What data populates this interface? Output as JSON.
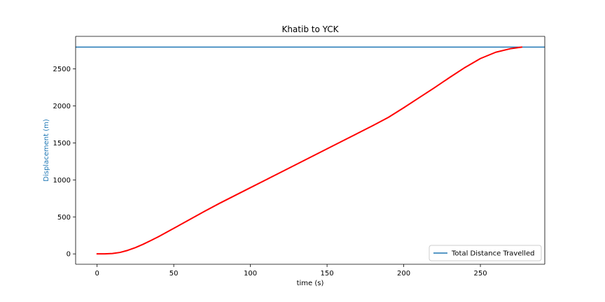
{
  "chart_data": {
    "type": "line",
    "title": "Khatib to YCK",
    "xlabel": "time (s)",
    "ylabel": "Displacement (m)",
    "xlim": [
      -14,
      292
    ],
    "ylim": [
      -140,
      2940
    ],
    "x_ticks": [
      0,
      50,
      100,
      150,
      200,
      250
    ],
    "y_ticks": [
      0,
      500,
      1000,
      1500,
      2000,
      2500
    ],
    "grid": false,
    "legend_position": "lower-right",
    "colors": {
      "displacement": "#ff0000",
      "total_distance": "#1f77b4",
      "ylabel": "#1f77b4"
    },
    "series": [
      {
        "key": "displacement",
        "x": [
          0,
          5,
          10,
          15,
          20,
          25,
          30,
          35,
          40,
          50,
          60,
          70,
          80,
          90,
          100,
          110,
          120,
          130,
          140,
          150,
          160,
          170,
          180,
          190,
          200,
          210,
          220,
          230,
          240,
          250,
          260,
          270,
          277
        ],
        "y": [
          0,
          1,
          5,
          20,
          48,
          85,
          130,
          180,
          232,
          345,
          460,
          575,
          685,
          790,
          895,
          1000,
          1105,
          1210,
          1315,
          1420,
          1525,
          1630,
          1735,
          1845,
          1975,
          2110,
          2245,
          2385,
          2520,
          2640,
          2725,
          2775,
          2795
        ]
      }
    ],
    "reference_lines": [
      {
        "name": "Total Distance Travelled",
        "orientation": "horizontal",
        "y": 2795
      }
    ]
  }
}
